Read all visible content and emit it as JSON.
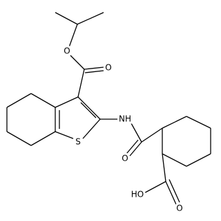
{
  "atoms": {
    "ester_ether_o": "O",
    "ester_carbonyl_o": "O",
    "amine": "NH",
    "sulfur": "S",
    "amide_o": "O",
    "acid_oh": "HO",
    "acid_carbonyl_o": "O"
  }
}
